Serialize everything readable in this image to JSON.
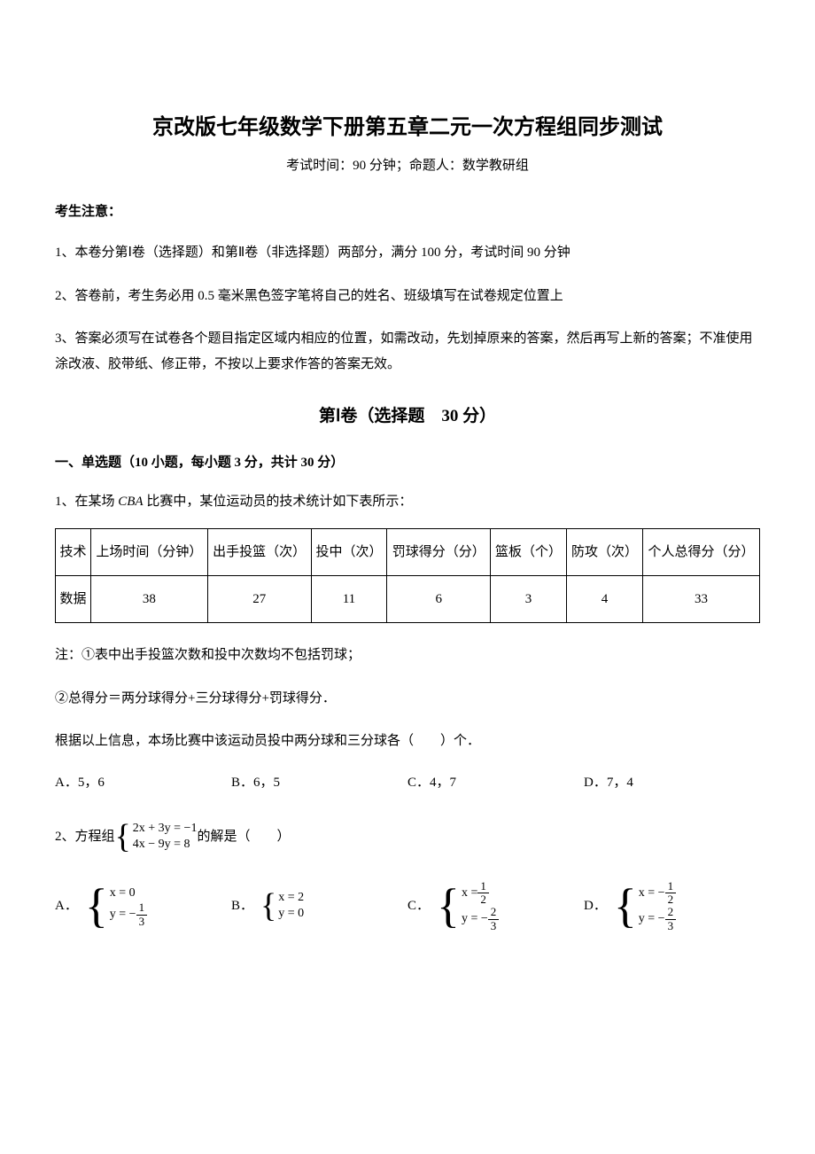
{
  "title": "京改版七年级数学下册第五章二元一次方程组同步测试",
  "subtitle": "考试时间：90 分钟；命题人：数学教研组",
  "noticeHeader": "考生注意：",
  "notice1": "1、本卷分第Ⅰ卷（选择题）和第Ⅱ卷（非选择题）两部分，满分 100 分，考试时间 90 分钟",
  "notice2": "2、答卷前，考生务必用 0.5 毫米黑色签字笔将自己的姓名、班级填写在试卷规定位置上",
  "notice3": "3、答案必须写在试卷各个题目指定区域内相应的位置，如需改动，先划掉原来的答案，然后再写上新的答案；不准使用涂改液、胶带纸、修正带，不按以上要求作答的答案无效。",
  "sectionHeader": "第Ⅰ卷（选择题　30 分）",
  "subsection": "一、单选题（10 小题，每小题 3 分，共计 30 分）",
  "q1": {
    "stem_pre": "1、在某场 ",
    "stem_cba": "CBA",
    "stem_post": " 比赛中，某位运动员的技术统计如下表所示：",
    "headers": [
      "技术",
      "上场时间（分钟）",
      "出手投篮（次）",
      "投中（次）",
      "罚球得分（分）",
      "篮板（个）",
      "防攻（次）",
      "个人总得分（分）"
    ],
    "data": [
      "数据",
      "38",
      "27",
      "11",
      "6",
      "3",
      "4",
      "33"
    ],
    "note1": "注：①表中出手投篮次数和投中次数均不包括罚球；",
    "note2": "②总得分＝两分球得分+三分球得分+罚球得分．",
    "note3": "根据以上信息，本场比赛中该运动员投中两分球和三分球各（　　）个．",
    "optA": "A．5，6",
    "optB": "B．6，5",
    "optC": "C．4，7",
    "optD": "D．7，4"
  },
  "q2": {
    "stem_pre": "2、方程组",
    "eq1": "2x + 3y = −1",
    "eq2": "4x − 9y = 8",
    "stem_post": "的解是（　　）",
    "labelA": "A．",
    "labelB": "B．",
    "labelC": "C．",
    "labelD": "D．",
    "A_line1_pre": "x = 0",
    "A_line2_pre": "y = −",
    "A_frac_num": "1",
    "A_frac_den": "3",
    "B_line1": "x = 2",
    "B_line2": "y = 0",
    "C_line1_pre": "x = ",
    "C_frac1_num": "1",
    "C_frac1_den": "2",
    "C_line2_pre": "y = −",
    "C_frac2_num": "2",
    "C_frac2_den": "3",
    "D_line1_pre": "x = −",
    "D_frac1_num": "1",
    "D_frac1_den": "2",
    "D_line2_pre": "y = −",
    "D_frac2_num": "2",
    "D_frac2_den": "3"
  }
}
